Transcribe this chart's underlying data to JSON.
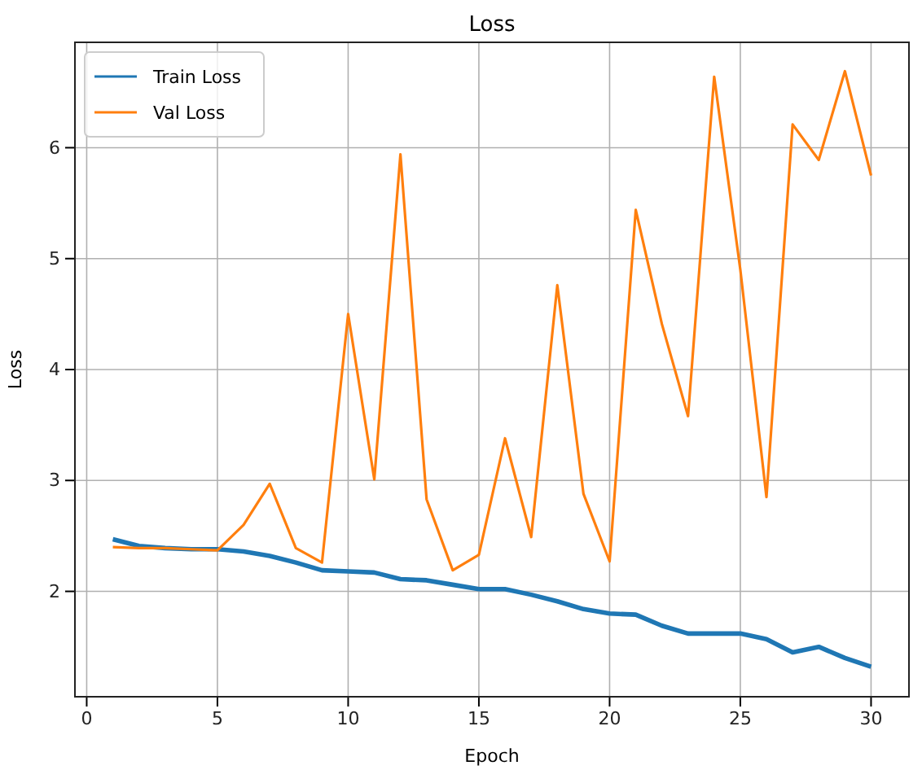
{
  "chart_data": {
    "type": "line",
    "title": "Loss",
    "xlabel": "Epoch",
    "ylabel": "Loss",
    "x": [
      1,
      2,
      3,
      4,
      5,
      6,
      7,
      8,
      9,
      10,
      11,
      12,
      13,
      14,
      15,
      16,
      17,
      18,
      19,
      20,
      21,
      22,
      23,
      24,
      25,
      26,
      27,
      28,
      29,
      30
    ],
    "series": [
      {
        "name": "Train Loss",
        "color": "#1f77b4",
        "values": [
          2.47,
          2.41,
          2.39,
          2.38,
          2.38,
          2.36,
          2.32,
          2.26,
          2.19,
          2.18,
          2.17,
          2.11,
          2.1,
          2.06,
          2.02,
          2.02,
          1.97,
          1.91,
          1.84,
          1.8,
          1.79,
          1.69,
          1.62,
          1.62,
          1.62,
          1.57,
          1.45,
          1.5,
          1.4,
          1.32
        ]
      },
      {
        "name": "Val Loss",
        "color": "#ff7f0e",
        "values": [
          2.4,
          2.39,
          2.39,
          2.38,
          2.37,
          2.6,
          2.97,
          2.39,
          2.26,
          4.5,
          3.01,
          5.94,
          2.83,
          2.19,
          2.33,
          3.38,
          2.49,
          4.76,
          2.88,
          2.27,
          5.44,
          4.41,
          3.58,
          6.64,
          4.9,
          2.85,
          6.21,
          5.89,
          6.69,
          5.75
        ]
      }
    ],
    "xlim": [
      -0.45,
      31.45
    ],
    "ylim": [
      1.05,
      6.95
    ],
    "xticks": [
      0,
      5,
      10,
      15,
      20,
      25,
      30
    ],
    "yticks": [
      2,
      3,
      4,
      5,
      6
    ],
    "grid": true,
    "legend": "top left",
    "marker": "none",
    "line_style": "solid"
  }
}
